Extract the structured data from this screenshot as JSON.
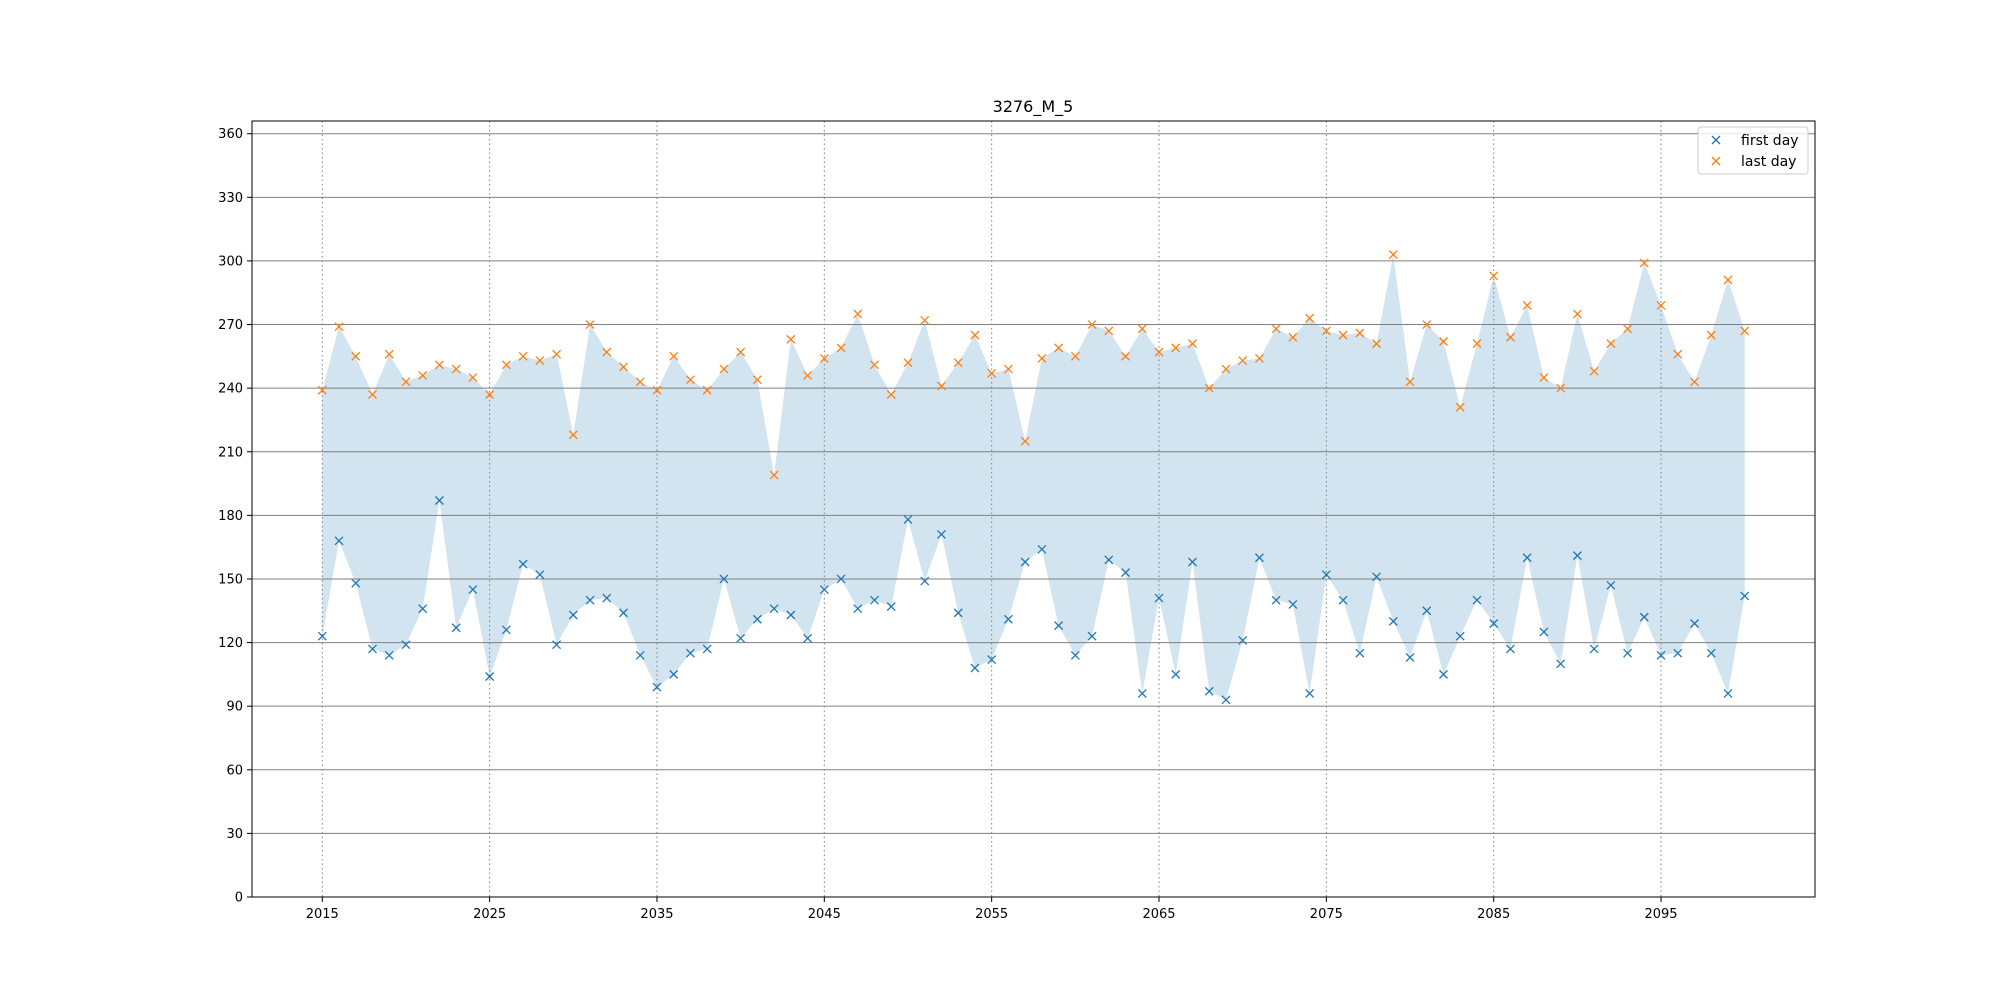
{
  "chart_data": {
    "type": "scatter",
    "title": "3276_M_5",
    "xlabel": "",
    "ylabel": "",
    "xlim": [
      2010.8,
      2104.2
    ],
    "ylim": [
      0,
      366
    ],
    "x_ticks": [
      2015,
      2025,
      2035,
      2045,
      2055,
      2065,
      2075,
      2085,
      2095
    ],
    "y_ticks": [
      0,
      30,
      60,
      90,
      120,
      150,
      180,
      210,
      240,
      270,
      300,
      330,
      360
    ],
    "grid": {
      "x": "dotted",
      "y": "solid"
    },
    "legend_position": "top-right",
    "fill_between": true,
    "x": [
      2015,
      2016,
      2017,
      2018,
      2019,
      2020,
      2021,
      2022,
      2023,
      2024,
      2025,
      2026,
      2027,
      2028,
      2029,
      2030,
      2031,
      2032,
      2033,
      2034,
      2035,
      2036,
      2037,
      2038,
      2039,
      2040,
      2041,
      2042,
      2043,
      2044,
      2045,
      2046,
      2047,
      2048,
      2049,
      2050,
      2051,
      2052,
      2053,
      2054,
      2055,
      2056,
      2057,
      2058,
      2059,
      2060,
      2061,
      2062,
      2063,
      2064,
      2065,
      2066,
      2067,
      2068,
      2069,
      2070,
      2071,
      2072,
      2073,
      2074,
      2075,
      2076,
      2077,
      2078,
      2079,
      2080,
      2081,
      2082,
      2083,
      2084,
      2085,
      2086,
      2087,
      2088,
      2089,
      2090,
      2091,
      2092,
      2093,
      2094,
      2095,
      2096,
      2097,
      2098,
      2099,
      2100
    ],
    "series": [
      {
        "name": "first day",
        "color": "#1f77b4",
        "marker": "x",
        "values": [
          123,
          168,
          148,
          117,
          114,
          119,
          136,
          187,
          127,
          145,
          104,
          126,
          157,
          152,
          119,
          133,
          140,
          141,
          134,
          114,
          99,
          105,
          115,
          117,
          150,
          122,
          131,
          136,
          133,
          122,
          145,
          150,
          136,
          140,
          137,
          178,
          149,
          171,
          134,
          108,
          112,
          131,
          158,
          164,
          128,
          114,
          123,
          159,
          153,
          96,
          141,
          105,
          158,
          97,
          93,
          121,
          160,
          140,
          138,
          96,
          152,
          140,
          115,
          151,
          130,
          113,
          135,
          105,
          123,
          140,
          129,
          117,
          160,
          125,
          110,
          161,
          117,
          147,
          115,
          132,
          114,
          115,
          129,
          115,
          96,
          142
        ]
      },
      {
        "name": "last day",
        "color": "#ff7f0e",
        "marker": "x",
        "values": [
          239,
          269,
          255,
          237,
          256,
          243,
          246,
          251,
          249,
          245,
          237,
          251,
          255,
          253,
          256,
          218,
          270,
          257,
          250,
          243,
          239,
          255,
          244,
          239,
          249,
          257,
          244,
          199,
          263,
          246,
          254,
          259,
          275,
          251,
          237,
          252,
          272,
          241,
          252,
          265,
          247,
          249,
          215,
          254,
          259,
          255,
          270,
          267,
          255,
          268,
          257,
          259,
          261,
          240,
          249,
          253,
          254,
          268,
          264,
          273,
          267,
          265,
          266,
          261,
          303,
          243,
          270,
          262,
          231,
          261,
          293,
          264,
          279,
          245,
          240,
          275,
          248,
          261,
          268,
          299,
          279,
          256,
          243,
          265,
          291,
          267
        ]
      }
    ]
  }
}
